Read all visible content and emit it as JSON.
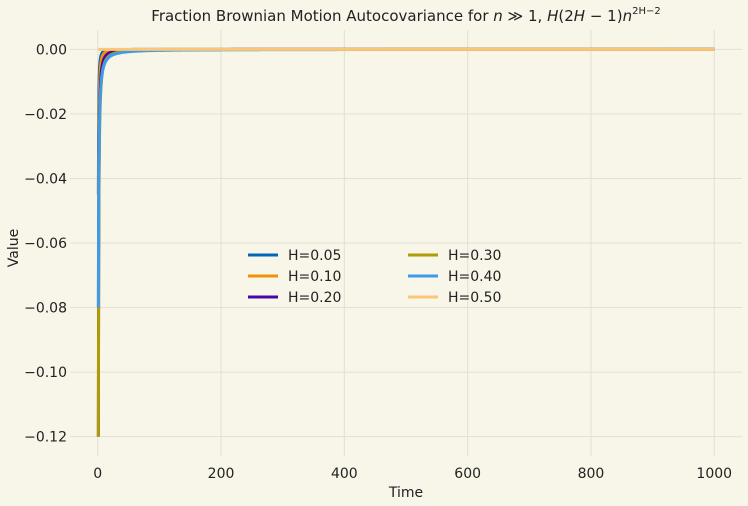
{
  "chart_data": {
    "type": "line",
    "title": "Fraction Brownian Motion Autocovariance for n ≫ 1, H(2H − 1)n^(2H−2)",
    "title_parts": {
      "prefix": "Fraction Brownian Motion Autocovariance for ",
      "n": "n",
      "gg": " ≫ 1, ",
      "H": "H",
      "paren": "(2",
      "H2": "H",
      "minus": " − 1)",
      "n2": "n",
      "sup": "2H−2"
    },
    "xlabel": "Time",
    "ylabel": "Value",
    "xlim": [
      -45,
      1045
    ],
    "ylim": [
      -0.126,
      0.006
    ],
    "x_ticks": [
      0,
      200,
      400,
      600,
      800,
      1000
    ],
    "y_ticks": [
      0.0,
      -0.02,
      -0.04,
      -0.06,
      -0.08,
      -0.1,
      -0.12
    ],
    "x_tick_labels": [
      "0",
      "200",
      "400",
      "600",
      "800",
      "1000"
    ],
    "y_tick_labels": [
      "0.00",
      "−0.02",
      "−0.04",
      "−0.06",
      "−0.08",
      "−0.10",
      "−0.12"
    ],
    "x_range": [
      1,
      1000
    ],
    "grid": true,
    "legend_placement": "center",
    "legend_columns": 2,
    "series": [
      {
        "name": "H=0.05",
        "H": 0.05,
        "color": "#0366b6"
      },
      {
        "name": "H=0.10",
        "H": 0.1,
        "color": "#f2900a"
      },
      {
        "name": "H=0.20",
        "H": 0.2,
        "color": "#4a06a8"
      },
      {
        "name": "H=0.30",
        "H": 0.3,
        "color": "#b09c06"
      },
      {
        "name": "H=0.40",
        "H": 0.4,
        "color": "#3d9bea"
      },
      {
        "name": "H=0.50",
        "H": 0.5,
        "color": "#fcc674"
      }
    ]
  }
}
